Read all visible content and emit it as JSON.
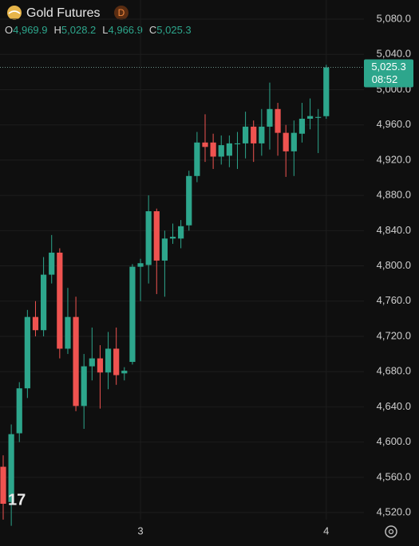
{
  "chart_data": {
    "type": "candlestick",
    "title": "Gold Futures",
    "interval": "D",
    "ohlc_header": [
      {
        "key": "O",
        "value": "4,969.9"
      },
      {
        "key": "H",
        "value": "5,028.2"
      },
      {
        "key": "L",
        "value": "4,966.9"
      },
      {
        "key": "C",
        "value": "5,025.3"
      }
    ],
    "last_price": {
      "label": "5,025.3",
      "countdown": "08:52"
    },
    "categories": [
      null,
      null,
      null,
      null,
      null,
      null,
      null,
      null,
      null,
      null,
      null,
      null,
      null,
      null,
      null,
      null,
      null,
      "3",
      null,
      null,
      null,
      null,
      null,
      null,
      null,
      null,
      null,
      null,
      null,
      null,
      null,
      null,
      null,
      null,
      null,
      null,
      null,
      null,
      null,
      null,
      "4"
    ],
    "open": [
      4572,
      4532,
      4610,
      4661,
      4742,
      4727,
      4790,
      4815,
      4706,
      4742,
      4641,
      4686,
      4695,
      4679,
      4706,
      4678,
      4691,
      4799,
      4801,
      4862,
      4806,
      4831,
      4831,
      4846,
      4902,
      4940,
      4940,
      4924,
      4925,
      4938,
      4939,
      4958,
      4939,
      4958,
      4978,
      4951,
      4930,
      4950,
      4967,
      4968,
      4969.9
    ],
    "high": [
      4585,
      4620,
      4668,
      4750,
      4760,
      4810,
      4835,
      4820,
      4775,
      4765,
      4700,
      4730,
      4710,
      4725,
      4730,
      4685,
      4802,
      4808,
      4880,
      4865,
      4840,
      4848,
      4852,
      4908,
      4952,
      4972,
      4950,
      4948,
      4948,
      4952,
      4975,
      4965,
      4978,
      5008,
      4985,
      4960,
      4965,
      4985,
      4990,
      4978,
      5028.2
    ],
    "low": [
      4512,
      4505,
      4600,
      4650,
      4720,
      4720,
      4780,
      4695,
      4700,
      4635,
      4615,
      4670,
      4638,
      4660,
      4665,
      4670,
      4688,
      4760,
      4780,
      4768,
      4765,
      4825,
      4820,
      4840,
      4895,
      4918,
      4910,
      4915,
      4912,
      4910,
      4922,
      4918,
      4925,
      4932,
      4925,
      4901,
      4902,
      4940,
      4955,
      4928,
      4966.9
    ],
    "close": [
      4530,
      4609,
      4661,
      4742,
      4727,
      4790,
      4815,
      4706,
      4742,
      4641,
      4686,
      4695,
      4679,
      4706,
      4676,
      4681,
      4799,
      4803,
      4862,
      4806,
      4831,
      4833,
      4845,
      4902,
      4940,
      4935,
      4924,
      4937,
      4939,
      4939,
      4958,
      4939,
      4958,
      4978,
      4951,
      4930,
      4951,
      4967,
      4970,
      4969,
      5025.3
    ],
    "up_color": "#2da68c",
    "down_color": "#ef5350",
    "ylim": [
      4507.2,
      5090.9
    ],
    "yticks": [
      {
        "value": 5080,
        "label": "5,080.0"
      },
      {
        "value": 5040,
        "label": "5,040.0"
      },
      {
        "value": 5000,
        "label": "5,000.0"
      },
      {
        "value": 4960,
        "label": "4,960.0"
      },
      {
        "value": 4920,
        "label": "4,920.0"
      },
      {
        "value": 4880,
        "label": "4,880.0"
      },
      {
        "value": 4840,
        "label": "4,840.0"
      },
      {
        "value": 4800,
        "label": "4,800.0"
      },
      {
        "value": 4760,
        "label": "4,760.0"
      },
      {
        "value": 4720,
        "label": "4,720.0"
      },
      {
        "value": 4680,
        "label": "4,680.0"
      },
      {
        "value": 4640,
        "label": "4,640.0"
      },
      {
        "value": 4600,
        "label": "4,600.0"
      },
      {
        "value": 4560,
        "label": "4,560.0"
      },
      {
        "value": 4520,
        "label": "4,520.0"
      }
    ],
    "grid": true
  }
}
